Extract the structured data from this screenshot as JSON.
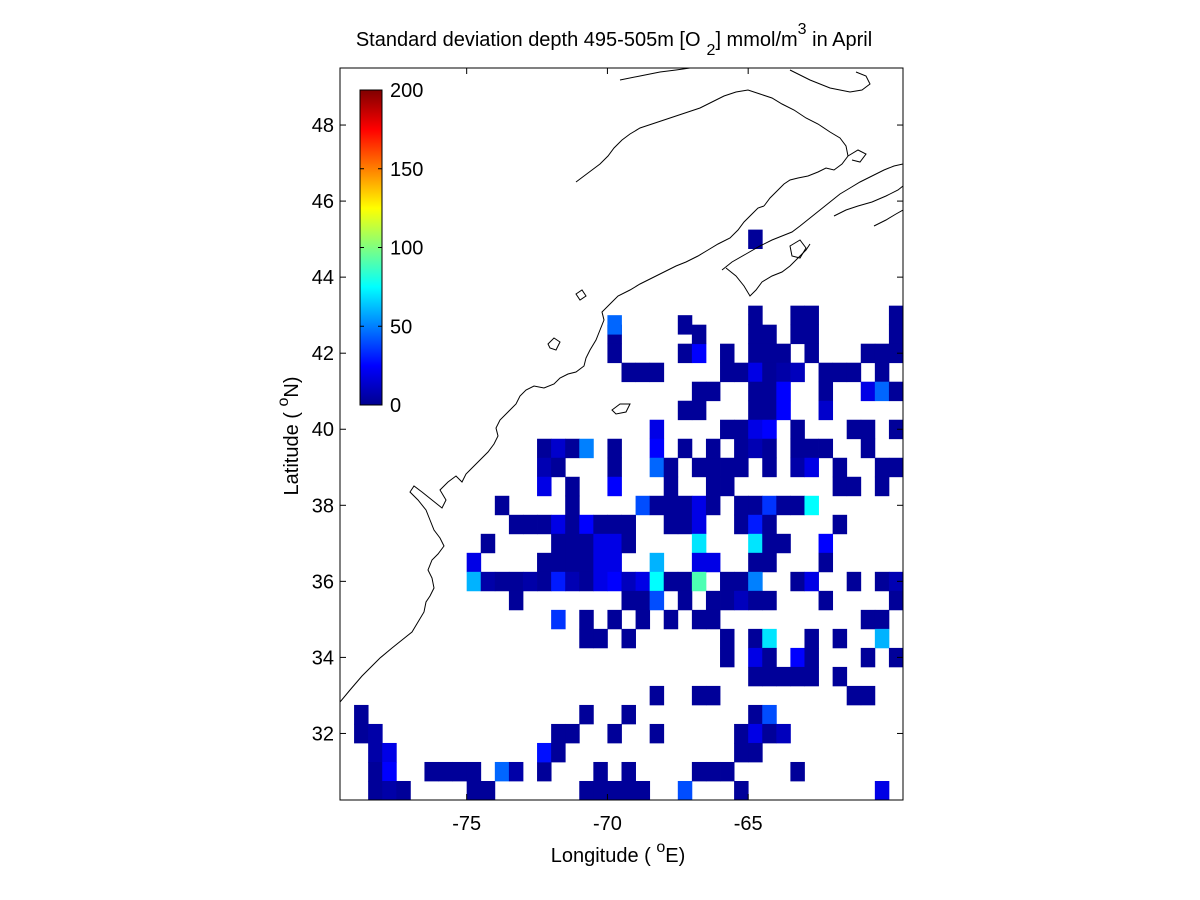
{
  "chart_data": {
    "type": "heatmap",
    "title": {
      "prefix": "Standard deviation depth 495-505m [O",
      "subscript": "2",
      "middle": "] mmol/m",
      "superscript": "3",
      "suffix": " in April"
    },
    "xlabel": {
      "prefix": "Longitude ( ",
      "superscript": "o",
      "suffix": "E)"
    },
    "ylabel": {
      "prefix": "Latitude ( ",
      "superscript": "o",
      "suffix": "N)"
    },
    "xlim": [
      -79.5,
      -59.5
    ],
    "ylim": [
      30.25,
      49.5
    ],
    "x_ticks": [
      -75,
      -70,
      -65
    ],
    "x_tick_labels": [
      "-75",
      "-70",
      "-65"
    ],
    "y_ticks": [
      32,
      34,
      36,
      38,
      40,
      42,
      44,
      46,
      48
    ],
    "y_tick_labels": [
      "32",
      "34",
      "36",
      "38",
      "40",
      "42",
      "44",
      "46",
      "48"
    ],
    "colorbar": {
      "range": [
        0,
        200
      ],
      "ticks": [
        0,
        50,
        100,
        150,
        200
      ],
      "tick_labels": [
        "0",
        "50",
        "100",
        "150",
        "200"
      ],
      "colormap": "jet"
    },
    "grid": false,
    "cell_size_deg": 0.5,
    "cells": [
      [
        -78.75,
        32.5,
        5
      ],
      [
        -78.75,
        32.0,
        5
      ],
      [
        -78.25,
        32.0,
        8
      ],
      [
        -78.25,
        31.5,
        8
      ],
      [
        -78.25,
        31.0,
        5
      ],
      [
        -78.25,
        30.5,
        5
      ],
      [
        -77.75,
        31.5,
        20
      ],
      [
        -77.75,
        31.0,
        25
      ],
      [
        -77.75,
        30.5,
        8
      ],
      [
        -77.25,
        30.5,
        5
      ],
      [
        -76.25,
        31.0,
        5
      ],
      [
        -75.75,
        31.0,
        5
      ],
      [
        -75.25,
        31.0,
        5
      ],
      [
        -74.75,
        31.0,
        5
      ],
      [
        -74.75,
        30.5,
        5
      ],
      [
        -74.25,
        30.5,
        5
      ],
      [
        -73.75,
        31.0,
        45
      ],
      [
        -73.25,
        31.0,
        8
      ],
      [
        -72.25,
        31.0,
        5
      ],
      [
        -72.25,
        31.5,
        28
      ],
      [
        -71.75,
        32.0,
        5
      ],
      [
        -71.75,
        31.5,
        5
      ],
      [
        -71.25,
        32.0,
        5
      ],
      [
        -70.75,
        32.5,
        5
      ],
      [
        -70.75,
        30.5,
        5
      ],
      [
        -70.25,
        31.0,
        5
      ],
      [
        -70.25,
        30.5,
        5
      ],
      [
        -69.75,
        32.0,
        5
      ],
      [
        -69.75,
        30.5,
        5
      ],
      [
        -69.25,
        32.5,
        5
      ],
      [
        -69.25,
        31.0,
        5
      ],
      [
        -69.25,
        30.5,
        5
      ],
      [
        -68.75,
        30.5,
        5
      ],
      [
        -68.25,
        33.0,
        5
      ],
      [
        -68.25,
        32.0,
        5
      ],
      [
        -67.25,
        30.5,
        40
      ],
      [
        -66.75,
        33.0,
        5
      ],
      [
        -66.75,
        31.0,
        5
      ],
      [
        -66.25,
        33.0,
        5
      ],
      [
        -66.25,
        31.0,
        5
      ],
      [
        -65.75,
        31.0,
        5
      ],
      [
        -65.25,
        32.0,
        5
      ],
      [
        -65.25,
        31.5,
        5
      ],
      [
        -65.25,
        30.5,
        5
      ],
      [
        -64.75,
        32.5,
        5
      ],
      [
        -64.75,
        32.0,
        20
      ],
      [
        -64.75,
        31.5,
        5
      ],
      [
        -64.25,
        32.5,
        40
      ],
      [
        -64.25,
        32.0,
        5
      ],
      [
        -63.75,
        32.0,
        12
      ],
      [
        -63.25,
        31.0,
        5
      ],
      [
        -60.25,
        30.5,
        20
      ],
      [
        -74.75,
        36.5,
        20
      ],
      [
        -74.75,
        36.0,
        60
      ],
      [
        -74.25,
        37.0,
        5
      ],
      [
        -74.25,
        36.0,
        8
      ],
      [
        -73.75,
        38.0,
        5
      ],
      [
        -73.75,
        36.0,
        5
      ],
      [
        -73.25,
        37.5,
        5
      ],
      [
        -73.25,
        36.0,
        5
      ],
      [
        -73.25,
        35.5,
        5
      ],
      [
        -72.75,
        37.5,
        5
      ],
      [
        -72.75,
        36.0,
        8
      ],
      [
        -72.25,
        37.5,
        5
      ],
      [
        -72.25,
        36.5,
        5
      ],
      [
        -72.25,
        36.0,
        5
      ],
      [
        -71.75,
        37.5,
        20
      ],
      [
        -71.75,
        37.0,
        5
      ],
      [
        -71.75,
        36.5,
        5
      ],
      [
        -71.75,
        36.0,
        30
      ],
      [
        -71.75,
        35.0,
        35
      ],
      [
        -71.25,
        38.5,
        5
      ],
      [
        -71.25,
        38.0,
        5
      ],
      [
        -71.25,
        37.5,
        5
      ],
      [
        -71.25,
        37.0,
        5
      ],
      [
        -71.25,
        36.5,
        5
      ],
      [
        -71.25,
        36.0,
        10
      ],
      [
        -70.75,
        37.5,
        25
      ],
      [
        -70.75,
        37.0,
        5
      ],
      [
        -70.75,
        36.5,
        5
      ],
      [
        -70.75,
        36.0,
        5
      ],
      [
        -70.75,
        35.0,
        5
      ],
      [
        -70.75,
        34.5,
        5
      ],
      [
        -70.25,
        37.5,
        5
      ],
      [
        -70.25,
        37.0,
        20
      ],
      [
        -70.25,
        36.5,
        20
      ],
      [
        -70.25,
        36.0,
        20
      ],
      [
        -70.25,
        34.5,
        5
      ],
      [
        -69.75,
        37.5,
        5
      ],
      [
        -69.75,
        37.0,
        20
      ],
      [
        -69.75,
        36.5,
        20
      ],
      [
        -69.75,
        36.0,
        25
      ],
      [
        -69.75,
        35.0,
        5
      ],
      [
        -69.25,
        37.5,
        5
      ],
      [
        -69.25,
        37.0,
        5
      ],
      [
        -69.25,
        36.0,
        12
      ],
      [
        -69.25,
        35.5,
        5
      ],
      [
        -69.25,
        34.5,
        5
      ],
      [
        -68.75,
        38.0,
        40
      ],
      [
        -68.75,
        36.0,
        20
      ],
      [
        -68.75,
        35.5,
        5
      ],
      [
        -68.75,
        35.0,
        5
      ],
      [
        -68.25,
        38.0,
        5
      ],
      [
        -68.25,
        36.5,
        60
      ],
      [
        -68.25,
        36.0,
        75
      ],
      [
        -68.25,
        35.5,
        40
      ],
      [
        -67.75,
        38.0,
        5
      ],
      [
        -67.75,
        37.5,
        5
      ],
      [
        -67.75,
        36.0,
        5
      ],
      [
        -67.75,
        35.0,
        5
      ],
      [
        -67.25,
        38.0,
        5
      ],
      [
        -67.25,
        37.5,
        5
      ],
      [
        -67.25,
        36.0,
        5
      ],
      [
        -67.25,
        35.5,
        5
      ],
      [
        -66.75,
        38.0,
        20
      ],
      [
        -66.75,
        37.5,
        20
      ],
      [
        -66.75,
        37.0,
        70
      ],
      [
        -66.75,
        36.5,
        20
      ],
      [
        -66.75,
        36.0,
        90
      ],
      [
        -66.75,
        35.0,
        5
      ],
      [
        -66.25,
        38.5,
        5
      ],
      [
        -66.25,
        38.0,
        5
      ],
      [
        -66.25,
        36.5,
        20
      ],
      [
        -66.25,
        35.5,
        5
      ],
      [
        -66.25,
        35.0,
        5
      ],
      [
        -65.75,
        36.0,
        5
      ],
      [
        -65.75,
        35.5,
        5
      ],
      [
        -65.75,
        34.5,
        5
      ],
      [
        -65.75,
        34.0,
        5
      ],
      [
        -65.25,
        38.0,
        5
      ],
      [
        -65.25,
        37.5,
        5
      ],
      [
        -65.25,
        36.0,
        5
      ],
      [
        -65.25,
        35.5,
        12
      ],
      [
        -64.75,
        38.0,
        5
      ],
      [
        -64.75,
        37.5,
        30
      ],
      [
        -64.75,
        37.0,
        70
      ],
      [
        -64.75,
        36.5,
        5
      ],
      [
        -64.75,
        36.0,
        50
      ],
      [
        -64.75,
        35.5,
        5
      ],
      [
        -64.75,
        34.5,
        5
      ],
      [
        -64.75,
        34.0,
        20
      ],
      [
        -64.75,
        33.5,
        5
      ],
      [
        -64.25,
        38.0,
        35
      ],
      [
        -64.25,
        37.5,
        5
      ],
      [
        -64.25,
        37.0,
        5
      ],
      [
        -64.25,
        36.5,
        5
      ],
      [
        -64.25,
        35.5,
        5
      ],
      [
        -64.25,
        34.5,
        70
      ],
      [
        -64.25,
        34.0,
        5
      ],
      [
        -64.25,
        33.5,
        5
      ],
      [
        -63.75,
        38.0,
        5
      ],
      [
        -63.75,
        37.0,
        5
      ],
      [
        -63.75,
        33.5,
        5
      ],
      [
        -63.25,
        38.0,
        5
      ],
      [
        -63.25,
        36.0,
        5
      ],
      [
        -63.25,
        34.0,
        25
      ],
      [
        -63.25,
        33.5,
        5
      ],
      [
        -62.75,
        38.0,
        75
      ],
      [
        -62.75,
        36.0,
        20
      ],
      [
        -62.75,
        34.0,
        5
      ],
      [
        -62.75,
        33.5,
        5
      ],
      [
        -62.75,
        34.5,
        5
      ],
      [
        -62.25,
        37.0,
        25
      ],
      [
        -62.25,
        36.5,
        5
      ],
      [
        -62.25,
        35.5,
        5
      ],
      [
        -61.75,
        38.5,
        5
      ],
      [
        -61.75,
        37.5,
        5
      ],
      [
        -61.25,
        38.5,
        5
      ],
      [
        -61.25,
        36.0,
        5
      ],
      [
        -60.75,
        35.0,
        5
      ],
      [
        -60.75,
        34.0,
        5
      ],
      [
        -60.25,
        36.0,
        5
      ],
      [
        -60.25,
        35.0,
        5
      ],
      [
        -60.25,
        34.5,
        60
      ],
      [
        -59.75,
        36.0,
        10
      ],
      [
        -59.75,
        35.5,
        5
      ],
      [
        -59.75,
        34.0,
        5
      ],
      [
        -60.75,
        33.0,
        5
      ],
      [
        -61.25,
        33.0,
        5
      ],
      [
        -61.75,
        33.5,
        5
      ],
      [
        -61.75,
        34.5,
        5
      ],
      [
        -72.25,
        39.5,
        5
      ],
      [
        -72.25,
        39.0,
        10
      ],
      [
        -72.25,
        38.5,
        20
      ],
      [
        -71.75,
        39.5,
        15
      ],
      [
        -71.75,
        39.0,
        5
      ],
      [
        -71.25,
        39.5,
        5
      ],
      [
        -70.75,
        39.5,
        50
      ],
      [
        -69.75,
        39.5,
        5
      ],
      [
        -69.75,
        39.0,
        5
      ],
      [
        -69.75,
        38.5,
        25
      ],
      [
        -68.25,
        40.0,
        20
      ],
      [
        -68.25,
        39.5,
        25
      ],
      [
        -68.25,
        39.0,
        45
      ],
      [
        -67.75,
        39.0,
        5
      ],
      [
        -67.75,
        38.5,
        5
      ],
      [
        -67.25,
        40.5,
        5
      ],
      [
        -66.75,
        41.0,
        5
      ],
      [
        -66.75,
        40.5,
        5
      ],
      [
        -66.75,
        39.0,
        5
      ],
      [
        -66.25,
        41.0,
        5
      ],
      [
        -66.25,
        39.0,
        5
      ],
      [
        -65.75,
        41.5,
        5
      ],
      [
        -65.75,
        39.0,
        5
      ],
      [
        -65.75,
        38.5,
        5
      ],
      [
        -65.75,
        40.0,
        5
      ],
      [
        -65.25,
        41.5,
        5
      ],
      [
        -65.25,
        40.0,
        5
      ],
      [
        -65.25,
        39.5,
        5
      ],
      [
        -65.25,
        39.0,
        5
      ],
      [
        -64.75,
        42.5,
        5
      ],
      [
        -64.75,
        42.0,
        5
      ],
      [
        -64.75,
        41.5,
        20
      ],
      [
        -64.75,
        41.0,
        5
      ],
      [
        -64.75,
        40.5,
        5
      ],
      [
        -64.75,
        40.0,
        20
      ],
      [
        -64.75,
        39.5,
        10
      ],
      [
        -64.25,
        42.5,
        5
      ],
      [
        -64.25,
        42.0,
        5
      ],
      [
        -64.25,
        41.5,
        5
      ],
      [
        -64.25,
        41.0,
        5
      ],
      [
        -64.25,
        40.5,
        5
      ],
      [
        -64.25,
        40.0,
        25
      ],
      [
        -64.25,
        39.5,
        5
      ],
      [
        -64.25,
        39.0,
        5
      ],
      [
        -63.75,
        42.0,
        5
      ],
      [
        -63.75,
        41.5,
        8
      ],
      [
        -63.75,
        41.0,
        25
      ],
      [
        -63.75,
        40.5,
        25
      ],
      [
        -63.25,
        42.5,
        5
      ],
      [
        -63.25,
        41.5,
        12
      ],
      [
        -63.25,
        40.0,
        5
      ],
      [
        -63.25,
        39.5,
        5
      ],
      [
        -63.25,
        39.0,
        8
      ],
      [
        -62.75,
        42.5,
        5
      ],
      [
        -62.75,
        42.0,
        5
      ],
      [
        -62.75,
        39.5,
        5
      ],
      [
        -62.75,
        39.0,
        20
      ],
      [
        -62.25,
        41.5,
        5
      ],
      [
        -62.25,
        41.0,
        5
      ],
      [
        -62.25,
        40.5,
        15
      ],
      [
        -62.25,
        39.5,
        5
      ],
      [
        -61.75,
        41.5,
        5
      ],
      [
        -61.75,
        39.0,
        5
      ],
      [
        -61.25,
        41.5,
        5
      ],
      [
        -61.25,
        40.0,
        5
      ],
      [
        -60.75,
        42.0,
        5
      ],
      [
        -60.75,
        41.0,
        20
      ],
      [
        -60.75,
        40.0,
        5
      ],
      [
        -60.75,
        39.5,
        5
      ],
      [
        -60.25,
        42.0,
        5
      ],
      [
        -60.25,
        41.5,
        5
      ],
      [
        -60.25,
        41.0,
        45
      ],
      [
        -60.25,
        39.0,
        5
      ],
      [
        -60.25,
        38.5,
        5
      ],
      [
        -59.75,
        42.5,
        5
      ],
      [
        -59.75,
        42.0,
        5
      ],
      [
        -59.75,
        41.0,
        5
      ],
      [
        -59.75,
        40.0,
        5
      ],
      [
        -59.75,
        39.0,
        5
      ],
      [
        -69.75,
        42.5,
        5
      ],
      [
        -69.75,
        42.0,
        5
      ],
      [
        -69.75,
        42.75,
        45
      ],
      [
        -69.25,
        41.5,
        5
      ],
      [
        -68.25,
        41.5,
        5
      ],
      [
        -67.25,
        42.0,
        5
      ],
      [
        -66.75,
        42.0,
        25
      ],
      [
        -66.75,
        42.5,
        5
      ],
      [
        -65.75,
        42.0,
        5
      ],
      [
        -64.75,
        43.0,
        5
      ],
      [
        -63.25,
        43.0,
        5
      ],
      [
        -62.75,
        43.0,
        5
      ],
      [
        -67.25,
        42.75,
        5
      ],
      [
        -67.25,
        39.5,
        5
      ],
      [
        -66.25,
        39.5,
        5
      ],
      [
        -59.75,
        43.0,
        5
      ],
      [
        -64.75,
        45.0,
        5
      ],
      [
        -68.75,
        41.5,
        5
      ]
    ]
  }
}
